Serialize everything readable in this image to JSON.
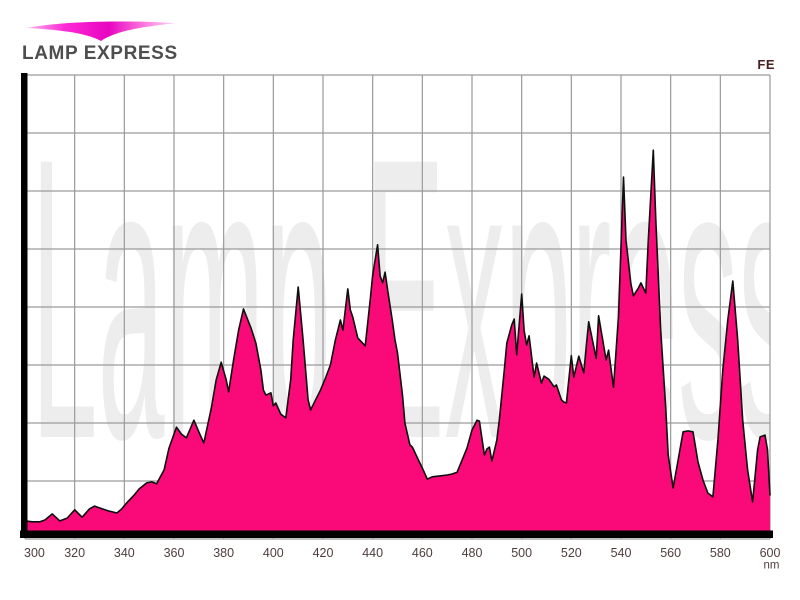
{
  "brand": {
    "logo_text": "LAMP EXPRESS"
  },
  "header": {
    "lamp_type": "FE"
  },
  "watermark": {
    "text": "Lamp Express"
  },
  "colors": {
    "spectrum_fill": "#fa0a78",
    "spectrum_outline": "#0e0e0e",
    "grid_line": "#9a9a9a",
    "plot_border": "#9a9a9a",
    "axis_bar": "#000000",
    "tick_text": "#4e3d3d",
    "lamp_type_text": "#4a2121",
    "logo_text_color": "#4e4e4e",
    "watermark_color": "#ededed",
    "swoosh_gradient": [
      "#ffb9ec",
      "#ff2ad6",
      "#e705c1",
      "#ff7fe0",
      "#ffd9f4"
    ]
  },
  "chart_data": {
    "type": "area",
    "xlabel": "nm",
    "xlim": [
      300,
      600
    ],
    "ylim": [
      0,
      100
    ],
    "x_ticks": [
      300,
      320,
      340,
      360,
      380,
      400,
      420,
      440,
      460,
      480,
      500,
      520,
      540,
      560,
      580,
      600
    ],
    "grid": {
      "shown": true,
      "x_divisions": 15,
      "y_divisions": 8
    },
    "series": [
      {
        "name": "FE",
        "points": [
          [
            300,
            3.9
          ],
          [
            303,
            3.7
          ],
          [
            306,
            3.7
          ],
          [
            308,
            4.1
          ],
          [
            311,
            5.4
          ],
          [
            314,
            3.9
          ],
          [
            317,
            4.5
          ],
          [
            320,
            6.3
          ],
          [
            323,
            4.7
          ],
          [
            326,
            6.5
          ],
          [
            328,
            7.1
          ],
          [
            331,
            6.5
          ],
          [
            334,
            6.0
          ],
          [
            337,
            5.6
          ],
          [
            339,
            6.5
          ],
          [
            341,
            7.8
          ],
          [
            344,
            9.5
          ],
          [
            346,
            10.8
          ],
          [
            349,
            12.1
          ],
          [
            351,
            12.3
          ],
          [
            353,
            11.9
          ],
          [
            356,
            14.9
          ],
          [
            358,
            19.6
          ],
          [
            361,
            24.1
          ],
          [
            363,
            22.6
          ],
          [
            365,
            21.8
          ],
          [
            368,
            25.6
          ],
          [
            370,
            23.1
          ],
          [
            372,
            20.7
          ],
          [
            375,
            28.2
          ],
          [
            377,
            34.3
          ],
          [
            379,
            38.1
          ],
          [
            381,
            34.3
          ],
          [
            382,
            31.7
          ],
          [
            384,
            38.6
          ],
          [
            386,
            45.0
          ],
          [
            388,
            49.6
          ],
          [
            390,
            46.8
          ],
          [
            391,
            45.5
          ],
          [
            393,
            42.2
          ],
          [
            395,
            36.4
          ],
          [
            396,
            32.1
          ],
          [
            397,
            31.0
          ],
          [
            399,
            31.5
          ],
          [
            400,
            28.7
          ],
          [
            401,
            29.3
          ],
          [
            403,
            26.9
          ],
          [
            405,
            26.1
          ],
          [
            407,
            34.3
          ],
          [
            408,
            42.9
          ],
          [
            410,
            54.3
          ],
          [
            412,
            42.9
          ],
          [
            414,
            30.0
          ],
          [
            415,
            27.8
          ],
          [
            417,
            30.0
          ],
          [
            419,
            32.1
          ],
          [
            421,
            34.7
          ],
          [
            423,
            37.5
          ],
          [
            425,
            42.9
          ],
          [
            427,
            47.2
          ],
          [
            428,
            45.0
          ],
          [
            430,
            53.9
          ],
          [
            431,
            49.4
          ],
          [
            432,
            47.8
          ],
          [
            434,
            43.3
          ],
          [
            436,
            42.2
          ],
          [
            437,
            41.6
          ],
          [
            439,
            51.5
          ],
          [
            440,
            56.9
          ],
          [
            442,
            63.4
          ],
          [
            443,
            56.7
          ],
          [
            444,
            55.2
          ],
          [
            445,
            57.5
          ],
          [
            446,
            53.7
          ],
          [
            448,
            46.8
          ],
          [
            449,
            42.9
          ],
          [
            450,
            40.1
          ],
          [
            452,
            31.0
          ],
          [
            453,
            25.0
          ],
          [
            455,
            20.3
          ],
          [
            456,
            19.8
          ],
          [
            458,
            17.5
          ],
          [
            460,
            15.3
          ],
          [
            462,
            12.9
          ],
          [
            464,
            13.4
          ],
          [
            467,
            13.6
          ],
          [
            470,
            13.8
          ],
          [
            472,
            14.0
          ],
          [
            474,
            14.4
          ],
          [
            476,
            17.0
          ],
          [
            478,
            19.6
          ],
          [
            480,
            23.5
          ],
          [
            482,
            25.6
          ],
          [
            483,
            25.4
          ],
          [
            485,
            18.1
          ],
          [
            486,
            19.4
          ],
          [
            487,
            19.8
          ],
          [
            488,
            16.8
          ],
          [
            490,
            21.3
          ],
          [
            491,
            25.6
          ],
          [
            493,
            36.4
          ],
          [
            494,
            42.2
          ],
          [
            496,
            46.1
          ],
          [
            497,
            47.4
          ],
          [
            498,
            39.7
          ],
          [
            500,
            52.8
          ],
          [
            501,
            45.0
          ],
          [
            502,
            41.8
          ],
          [
            503,
            43.8
          ],
          [
            505,
            34.9
          ],
          [
            506,
            37.9
          ],
          [
            508,
            33.6
          ],
          [
            509,
            35.1
          ],
          [
            511,
            34.4
          ],
          [
            513,
            32.8
          ],
          [
            514,
            33.2
          ],
          [
            516,
            30.0
          ],
          [
            517,
            29.5
          ],
          [
            518,
            29.3
          ],
          [
            520,
            39.5
          ],
          [
            521,
            34.9
          ],
          [
            523,
            39.4
          ],
          [
            525,
            35.8
          ],
          [
            526,
            41.4
          ],
          [
            527,
            46.8
          ],
          [
            530,
            38.9
          ],
          [
            531,
            48.1
          ],
          [
            534,
            38.6
          ],
          [
            535,
            40.7
          ],
          [
            537,
            32.7
          ],
          [
            539,
            48.0
          ],
          [
            541,
            78.0
          ],
          [
            542,
            64.4
          ],
          [
            544,
            55.0
          ],
          [
            545,
            52.4
          ],
          [
            547,
            54.1
          ],
          [
            548,
            55.2
          ],
          [
            550,
            53.0
          ],
          [
            551,
            64.4
          ],
          [
            553,
            83.8
          ],
          [
            554,
            68.8
          ],
          [
            556,
            45.0
          ],
          [
            558,
            28.4
          ],
          [
            559,
            18.1
          ],
          [
            561,
            11.0
          ],
          [
            563,
            17.0
          ],
          [
            565,
            23.1
          ],
          [
            567,
            23.3
          ],
          [
            569,
            23.1
          ],
          [
            571,
            16.6
          ],
          [
            573,
            12.7
          ],
          [
            575,
            9.9
          ],
          [
            577,
            9.1
          ],
          [
            579,
            21.3
          ],
          [
            581,
            36.4
          ],
          [
            583,
            47.2
          ],
          [
            585,
            55.6
          ],
          [
            587,
            42.9
          ],
          [
            589,
            25.6
          ],
          [
            591,
            14.9
          ],
          [
            593,
            8.0
          ],
          [
            595,
            19.2
          ],
          [
            596,
            22.0
          ],
          [
            598,
            22.4
          ],
          [
            599,
            19.2
          ],
          [
            600,
            9.5
          ]
        ]
      }
    ]
  }
}
